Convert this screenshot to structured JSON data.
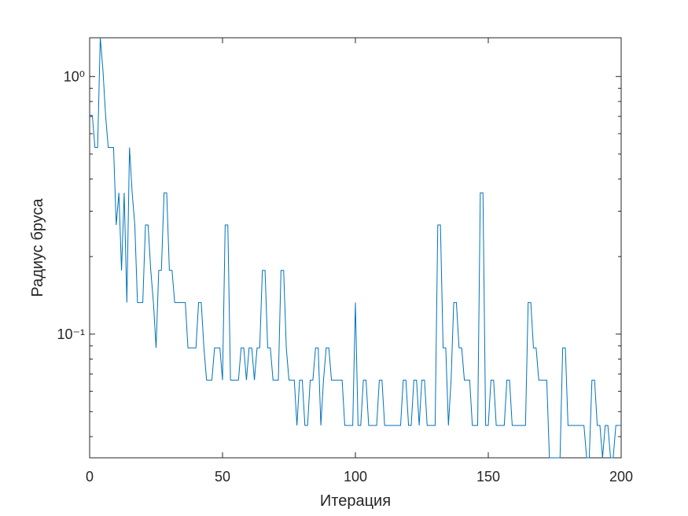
{
  "chart_data": {
    "type": "line",
    "xlabel": "Итерация",
    "ylabel": "Радиус бруса",
    "color": "#0072bd",
    "log_y": true,
    "grid": false,
    "xlim": [
      0,
      200
    ],
    "xticks": [
      0,
      50,
      100,
      150,
      200
    ],
    "ylim": [
      0.0331,
      1.4142
    ],
    "yticks": [
      {
        "value": 0.1,
        "label": "10⁻¹"
      },
      {
        "value": 1,
        "label": "10⁰"
      }
    ],
    "yminorticks": [
      0.04,
      0.05,
      0.06,
      0.07,
      0.08,
      0.09,
      0.2,
      0.3,
      0.4,
      0.5,
      0.6,
      0.7,
      0.8,
      0.9
    ],
    "x": [
      0,
      1,
      2,
      3,
      4,
      5,
      6,
      7,
      8,
      9,
      10,
      11,
      12,
      13,
      14,
      15,
      16,
      17,
      18,
      19,
      20,
      21,
      22,
      23,
      24,
      25,
      26,
      27,
      28,
      29,
      30,
      31,
      32,
      33,
      34,
      35,
      36,
      37,
      38,
      39,
      40,
      41,
      42,
      43,
      44,
      45,
      46,
      47,
      48,
      49,
      50,
      51,
      52,
      53,
      54,
      55,
      56,
      57,
      58,
      59,
      60,
      61,
      62,
      63,
      64,
      65,
      66,
      67,
      68,
      69,
      70,
      71,
      72,
      73,
      74,
      75,
      76,
      77,
      78,
      79,
      80,
      81,
      82,
      83,
      84,
      85,
      86,
      87,
      88,
      89,
      90,
      91,
      92,
      93,
      94,
      95,
      96,
      97,
      98,
      99,
      100,
      101,
      102,
      103,
      104,
      105,
      106,
      107,
      108,
      109,
      110,
      111,
      112,
      113,
      114,
      115,
      116,
      117,
      118,
      119,
      120,
      121,
      122,
      123,
      124,
      125,
      126,
      127,
      128,
      129,
      130,
      131,
      132,
      133,
      134,
      135,
      136,
      137,
      138,
      139,
      140,
      141,
      142,
      143,
      144,
      145,
      146,
      147,
      148,
      149,
      150,
      151,
      152,
      153,
      154,
      155,
      156,
      157,
      158,
      159,
      160,
      161,
      162,
      163,
      164,
      165,
      166,
      167,
      168,
      169,
      170,
      171,
      172,
      173,
      174,
      175,
      176,
      177,
      178,
      179,
      180,
      181,
      182,
      183,
      184,
      185,
      186,
      187,
      188,
      189,
      190,
      191,
      192,
      193,
      194,
      195,
      196,
      197,
      198,
      199,
      200
    ],
    "values": [
      0.7071,
      0.7071,
      0.5303,
      0.5303,
      1.4142,
      1.0607,
      0.7071,
      0.5303,
      0.5303,
      0.5303,
      0.2652,
      0.3536,
      0.1768,
      0.3536,
      0.1326,
      0.5303,
      0.3536,
      0.2652,
      0.1326,
      0.1326,
      0.1326,
      0.2652,
      0.2652,
      0.1768,
      0.1326,
      0.0884,
      0.1768,
      0.1768,
      0.3536,
      0.3536,
      0.1768,
      0.1768,
      0.1326,
      0.1326,
      0.1326,
      0.1326,
      0.1326,
      0.0884,
      0.0884,
      0.0884,
      0.0884,
      0.1326,
      0.1326,
      0.0884,
      0.0663,
      0.0663,
      0.0663,
      0.0884,
      0.0884,
      0.0884,
      0.0663,
      0.2652,
      0.2652,
      0.0663,
      0.0663,
      0.0663,
      0.0663,
      0.0884,
      0.0884,
      0.0663,
      0.0884,
      0.0884,
      0.0663,
      0.0884,
      0.0884,
      0.1768,
      0.1768,
      0.0884,
      0.0884,
      0.0663,
      0.0663,
      0.0663,
      0.1768,
      0.1768,
      0.0884,
      0.0663,
      0.0663,
      0.0663,
      0.0442,
      0.0663,
      0.0663,
      0.0442,
      0.0442,
      0.0663,
      0.0663,
      0.0884,
      0.0884,
      0.0442,
      0.0663,
      0.0884,
      0.0884,
      0.0663,
      0.0663,
      0.0663,
      0.0663,
      0.0663,
      0.0442,
      0.0442,
      0.0442,
      0.0442,
      0.1326,
      0.0442,
      0.0442,
      0.0663,
      0.0663,
      0.0442,
      0.0442,
      0.0442,
      0.0442,
      0.0663,
      0.0663,
      0.0442,
      0.0442,
      0.0442,
      0.0442,
      0.0442,
      0.0442,
      0.0442,
      0.0663,
      0.0663,
      0.0442,
      0.0442,
      0.0663,
      0.0663,
      0.0442,
      0.0663,
      0.0663,
      0.0442,
      0.0442,
      0.0442,
      0.0442,
      0.2652,
      0.2652,
      0.0884,
      0.0884,
      0.0442,
      0.0663,
      0.1326,
      0.1326,
      0.0884,
      0.0884,
      0.0663,
      0.0663,
      0.0663,
      0.0442,
      0.0442,
      0.0442,
      0.3536,
      0.3536,
      0.0442,
      0.0442,
      0.0663,
      0.0663,
      0.0442,
      0.0442,
      0.0442,
      0.0442,
      0.0663,
      0.0663,
      0.0442,
      0.0442,
      0.0442,
      0.0442,
      0.0442,
      0.0442,
      0.1326,
      0.1326,
      0.0884,
      0.0884,
      0.0663,
      0.0663,
      0.0663,
      0.0663,
      0.0331,
      0.0331,
      0.0331,
      0.0331,
      0.0331,
      0.0884,
      0.0884,
      0.0442,
      0.0442,
      0.0442,
      0.0442,
      0.0442,
      0.0442,
      0.0442,
      0.0331,
      0.0331,
      0.0663,
      0.0663,
      0.0442,
      0.0442,
      0.0331,
      0.0442,
      0.0442,
      0.0331,
      0.0331,
      0.0442,
      0.0442,
      0.0442
    ]
  }
}
